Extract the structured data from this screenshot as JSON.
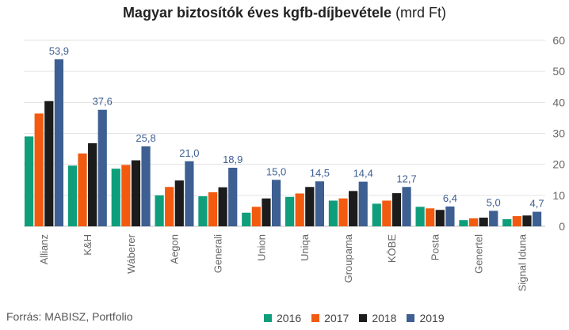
{
  "chart_data": {
    "type": "bar",
    "title": "Magyar biztosítók éves kgfb-díjbevétele",
    "title_unit": "(mrd Ft)",
    "categories": [
      "Allianz",
      "K&H",
      "Wáberer",
      "Aegon",
      "Generali",
      "Union",
      "Uniqa",
      "Groupama",
      "KÖBE",
      "Posta",
      "Genertel",
      "Signal Iduna"
    ],
    "series": [
      {
        "name": "2016",
        "color": "#0e9e7b",
        "values": [
          29,
          19.6,
          18.6,
          10,
          9.7,
          4.4,
          9.5,
          8.3,
          7.3,
          6.3,
          2,
          2.3
        ]
      },
      {
        "name": "2017",
        "color": "#f25a0f",
        "values": [
          36.4,
          23.5,
          19.8,
          12.7,
          11,
          6.3,
          10.6,
          9,
          8.3,
          5.8,
          2.6,
          3.3
        ]
      },
      {
        "name": "2018",
        "color": "#1c1c1c",
        "values": [
          40.4,
          26.8,
          21.3,
          14.8,
          12.6,
          9,
          12.7,
          11.4,
          10.7,
          5.3,
          2.8,
          3.5
        ]
      },
      {
        "name": "2019",
        "color": "#3d5f92",
        "values": [
          53.9,
          37.6,
          25.8,
          21.0,
          18.9,
          15.0,
          14.5,
          14.4,
          12.7,
          6.4,
          5.0,
          4.7
        ]
      }
    ],
    "data_labels": [
      "53,9",
      "37,6",
      "25,8",
      "21,0",
      "18,9",
      "15,0",
      "14,5",
      "14,4",
      "12,7",
      "6,4",
      "5,0",
      "4,7"
    ],
    "ylim": [
      0,
      60
    ],
    "yticks": [
      "0",
      "10",
      "20",
      "30",
      "40",
      "50",
      "60"
    ],
    "y_axis_side": "right",
    "grid": true,
    "legend_position": "bottom-right"
  },
  "source": "Forrás: MABISZ, Portfolio"
}
